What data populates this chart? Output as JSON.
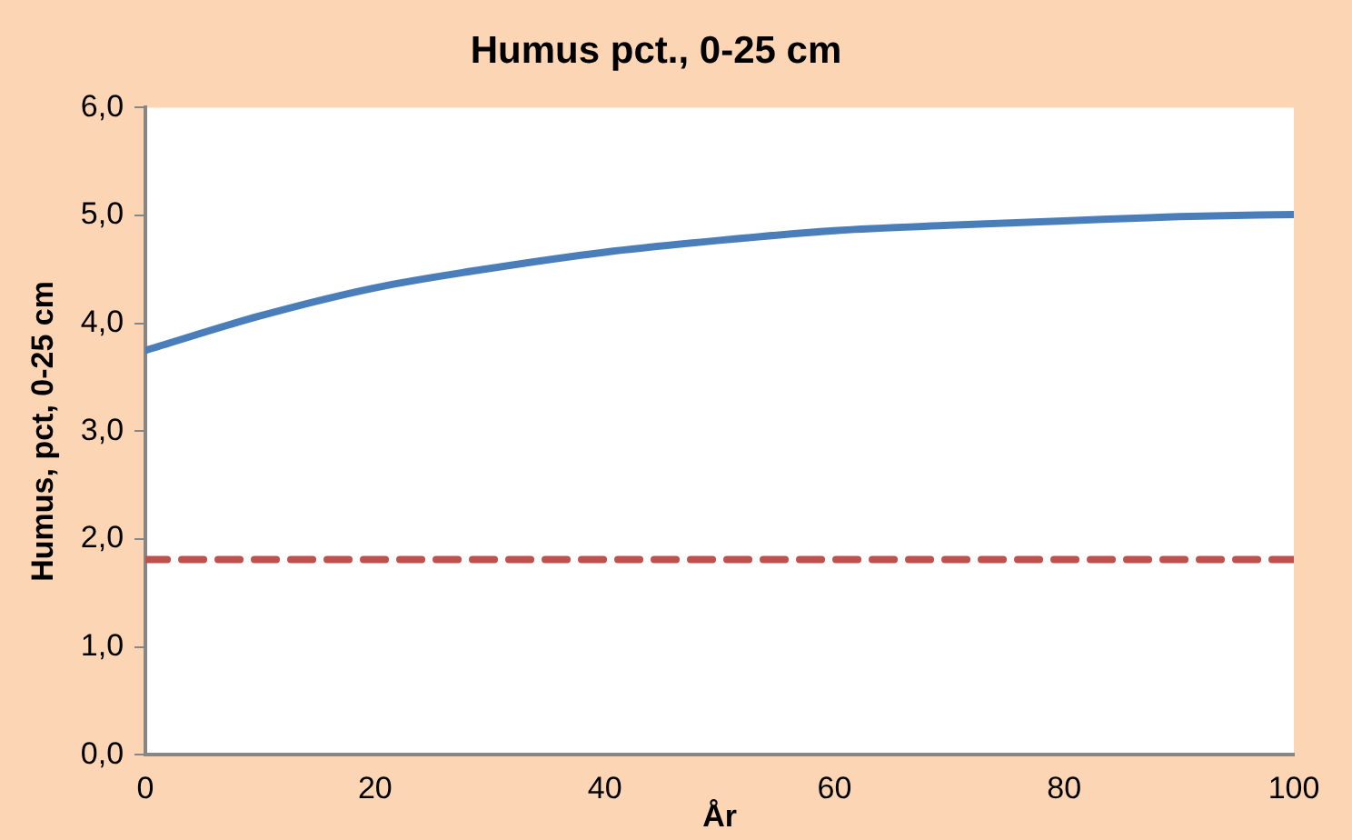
{
  "chart_data": {
    "type": "line",
    "title": "Humus pct., 0-25 cm",
    "xlabel": "År",
    "ylabel": "Humus, pct, 0-25 cm",
    "x": [
      0,
      10,
      20,
      30,
      40,
      50,
      60,
      70,
      80,
      90,
      100
    ],
    "series": [
      {
        "color": "#4a7ebb",
        "values": [
          3.75,
          4.07,
          4.33,
          4.51,
          4.66,
          4.77,
          4.86,
          4.91,
          4.95,
          4.99,
          5.01
        ],
        "line_style": "solid"
      },
      {
        "color": "#c0504d",
        "values": [
          1.81,
          1.81,
          1.81,
          1.81,
          1.81,
          1.81,
          1.81,
          1.81,
          1.81,
          1.81,
          1.81
        ],
        "line_style": "dashed"
      }
    ],
    "xlim": [
      0,
      100
    ],
    "xticks": [
      0,
      20,
      40,
      60,
      80,
      100
    ],
    "ylim": [
      0,
      6
    ],
    "yticks": [
      {
        "value": 0,
        "label": "0,0"
      },
      {
        "value": 1,
        "label": "1,0"
      },
      {
        "value": 2,
        "label": "2,0"
      },
      {
        "value": 3,
        "label": "3,0"
      },
      {
        "value": 4,
        "label": "4,0"
      },
      {
        "value": 5,
        "label": "5,0"
      },
      {
        "value": 6,
        "label": "6,0"
      }
    ],
    "grid": false,
    "legend": false,
    "marker": "none"
  }
}
